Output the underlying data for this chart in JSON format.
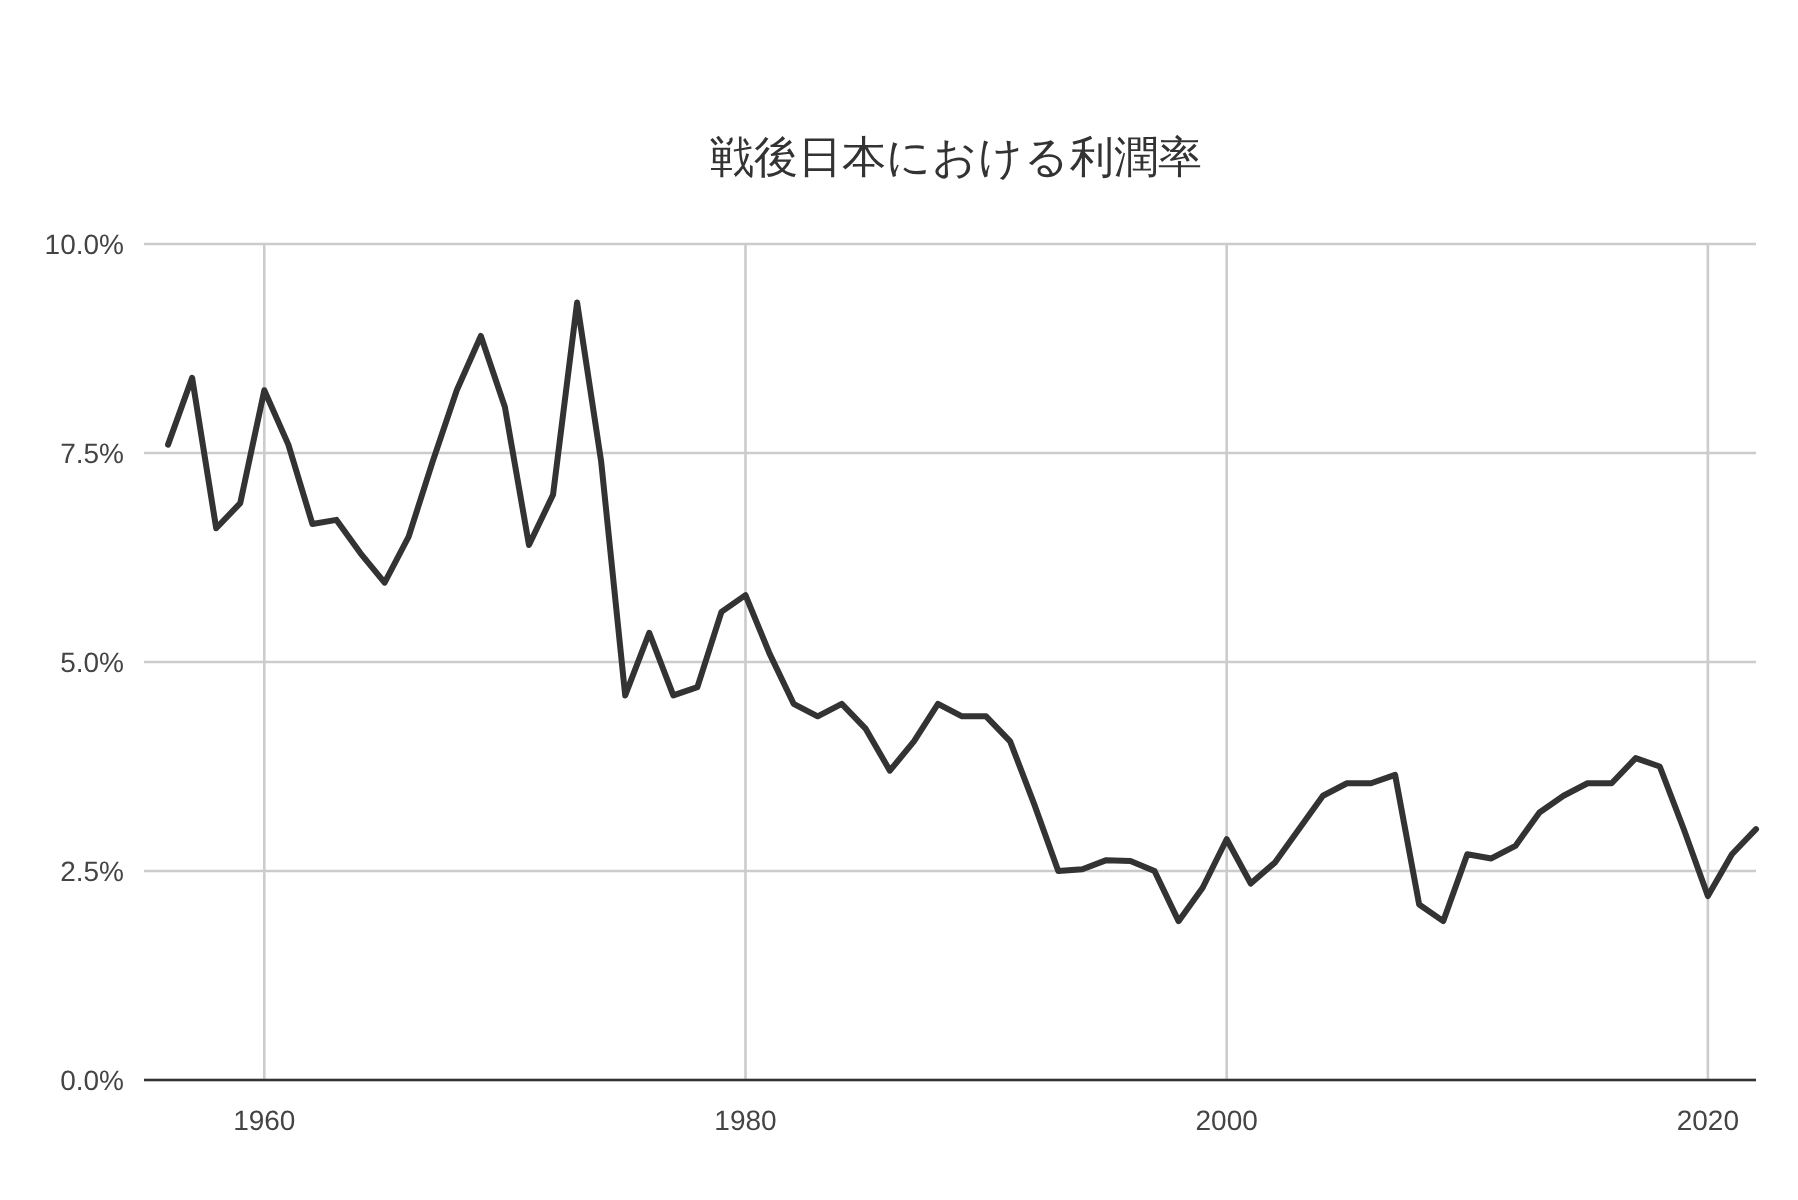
{
  "chart_data": {
    "type": "line",
    "title": "戦後日本における利潤率",
    "x": [
      1956,
      1957,
      1958,
      1959,
      1960,
      1961,
      1962,
      1963,
      1964,
      1965,
      1966,
      1967,
      1968,
      1969,
      1970,
      1971,
      1972,
      1973,
      1974,
      1975,
      1976,
      1977,
      1978,
      1979,
      1980,
      1981,
      1982,
      1983,
      1984,
      1985,
      1986,
      1987,
      1988,
      1989,
      1990,
      1991,
      1992,
      1993,
      1994,
      1995,
      1996,
      1997,
      1998,
      1999,
      2000,
      2001,
      2002,
      2003,
      2004,
      2005,
      2006,
      2007,
      2008,
      2009,
      2010,
      2011,
      2012,
      2013,
      2014,
      2015,
      2016,
      2017,
      2018,
      2019,
      2020,
      2021,
      2022
    ],
    "series": [
      {
        "color": "#333333",
        "values": [
          7.6,
          8.4,
          6.6,
          6.9,
          8.25,
          7.6,
          6.65,
          6.7,
          6.3,
          5.95,
          6.5,
          7.4,
          8.25,
          8.9,
          8.05,
          6.4,
          7.0,
          9.3,
          7.4,
          4.6,
          5.35,
          4.6,
          4.7,
          5.6,
          5.8,
          5.1,
          4.5,
          4.35,
          4.5,
          4.2,
          3.7,
          4.05,
          4.5,
          4.35,
          4.35,
          4.05,
          3.3,
          2.5,
          2.52,
          2.63,
          2.62,
          2.5,
          1.9,
          2.3,
          2.88,
          2.35,
          2.6,
          3.0,
          3.4,
          3.55,
          3.55,
          3.65,
          2.1,
          1.9,
          2.7,
          2.65,
          2.8,
          3.2,
          3.4,
          3.55,
          3.55,
          3.85,
          3.75,
          3.0,
          2.2,
          2.7,
          3.0
        ]
      }
    ],
    "xlim": [
      1955,
      2022
    ],
    "xticks": [
      1960,
      1980,
      2000,
      2020
    ],
    "ylim": [
      0,
      10
    ],
    "yticks": [
      {
        "value": 0,
        "label": "0.0%"
      },
      {
        "value": 2.5,
        "label": "2.5%"
      },
      {
        "value": 5,
        "label": "5.0%"
      },
      {
        "value": 7.5,
        "label": "7.5%"
      },
      {
        "value": 10,
        "label": "10.0%"
      }
    ],
    "grid": true,
    "marker": "none",
    "line_style": "solid"
  }
}
